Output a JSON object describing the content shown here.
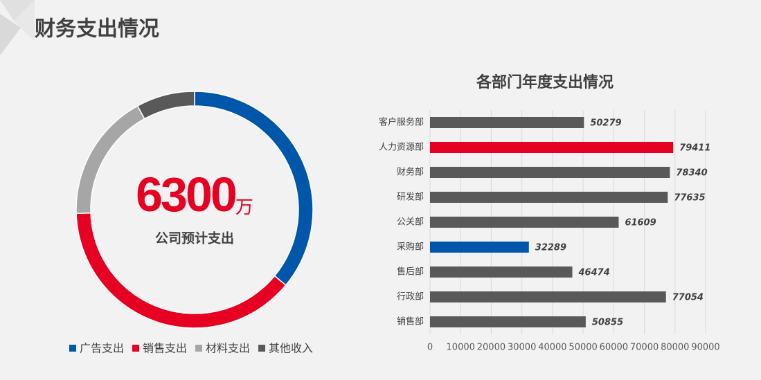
{
  "title": "财务支出情况",
  "chart_data": [
    {
      "type": "donut",
      "categories": [
        "广告支出",
        "销售支出",
        "材料支出",
        "其他收入"
      ],
      "values": [
        36,
        38.5,
        17.5,
        8
      ],
      "colors": [
        "#0056a8",
        "#e60022",
        "#a6a6a6",
        "#595959"
      ],
      "center_value": 6300,
      "center_unit": "万",
      "center_label": "公司预计支出",
      "legend": "bottom"
    },
    {
      "type": "hbar",
      "title": "各部门年度支出情况",
      "categories": [
        "客户服务部",
        "人力资源部",
        "财务部",
        "研发部",
        "公关部",
        "采购部",
        "售后部",
        "行政部",
        "销售部"
      ],
      "values": [
        50279,
        79411,
        78340,
        77635,
        61609,
        32289,
        46474,
        77054,
        50855
      ],
      "colors": [
        "#595959",
        "#e60022",
        "#595959",
        "#595959",
        "#595959",
        "#0056a8",
        "#595959",
        "#595959",
        "#595959"
      ],
      "xlim": [
        0,
        90000
      ],
      "xticks": [
        0,
        10000,
        20000,
        30000,
        40000,
        50000,
        60000,
        70000,
        80000,
        90000
      ],
      "grid": true
    }
  ]
}
